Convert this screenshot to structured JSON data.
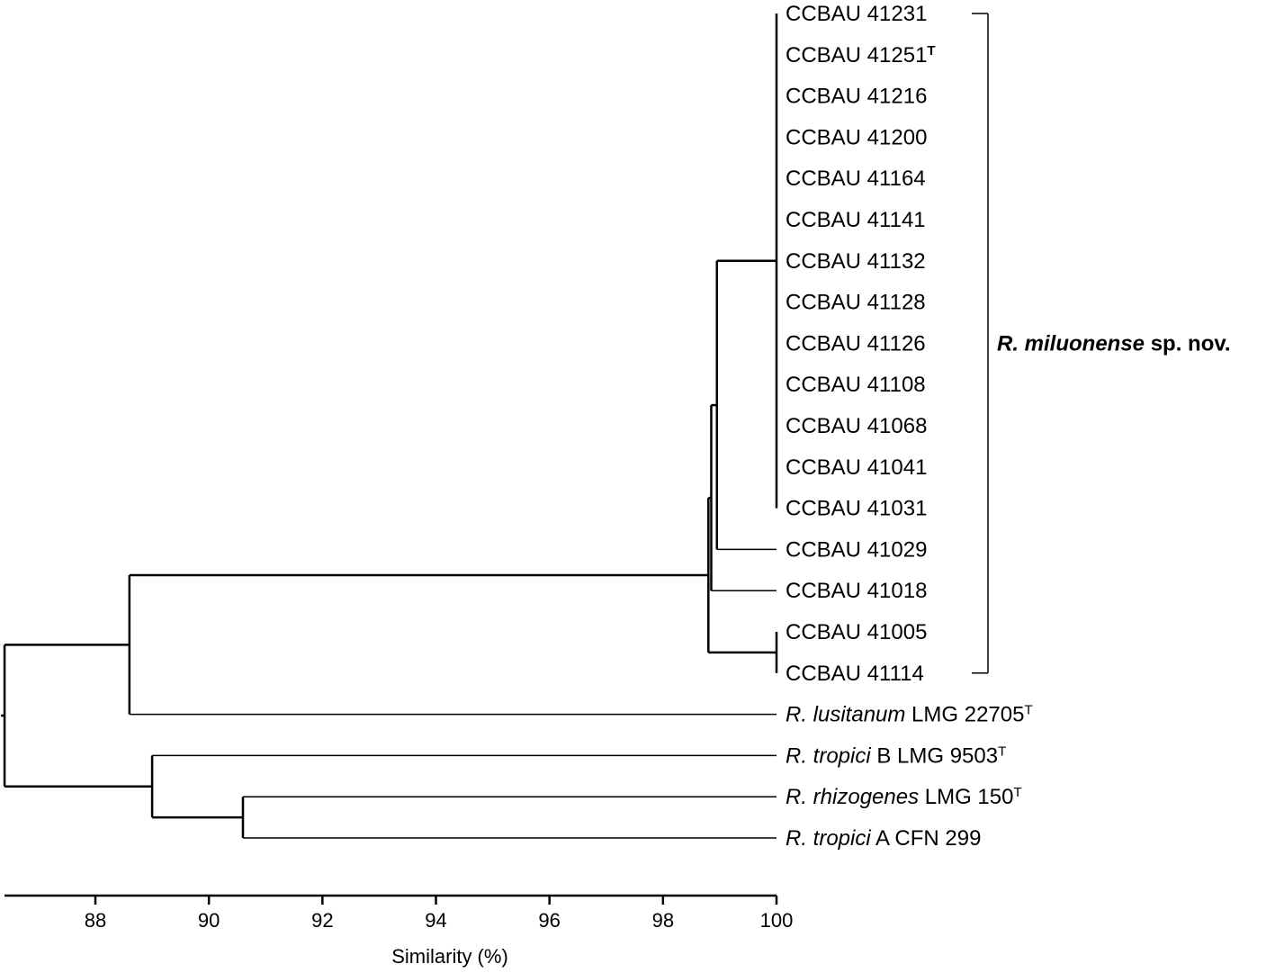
{
  "chart_data": {
    "type": "dendrogram",
    "xlabel": "Similarity (%)",
    "xlim": [
      86.4,
      100
    ],
    "xticks": [
      88,
      90,
      92,
      94,
      96,
      98,
      100
    ],
    "colors": {
      "line": "#000000",
      "text": "#000000",
      "background": "#ffffff"
    },
    "leaves": [
      {
        "id": "L1",
        "parts": [
          {
            "t": "CCBAU 41231"
          }
        ]
      },
      {
        "id": "L2",
        "parts": [
          {
            "t": "CCBAU 41251"
          },
          {
            "t": "T",
            "sup": true,
            "bold": true
          }
        ]
      },
      {
        "id": "L3",
        "parts": [
          {
            "t": "CCBAU 41216"
          }
        ]
      },
      {
        "id": "L4",
        "parts": [
          {
            "t": "CCBAU 41200"
          }
        ]
      },
      {
        "id": "L5",
        "parts": [
          {
            "t": "CCBAU 41164"
          }
        ]
      },
      {
        "id": "L6",
        "parts": [
          {
            "t": "CCBAU 41141"
          }
        ]
      },
      {
        "id": "L7",
        "parts": [
          {
            "t": "CCBAU 41132"
          }
        ]
      },
      {
        "id": "L8",
        "parts": [
          {
            "t": "CCBAU 41128"
          }
        ]
      },
      {
        "id": "L9",
        "parts": [
          {
            "t": "CCBAU 41126"
          }
        ]
      },
      {
        "id": "L10",
        "parts": [
          {
            "t": "CCBAU 41108"
          }
        ]
      },
      {
        "id": "L11",
        "parts": [
          {
            "t": "CCBAU 41068"
          }
        ]
      },
      {
        "id": "L12",
        "parts": [
          {
            "t": "CCBAU 41041"
          }
        ]
      },
      {
        "id": "L13",
        "parts": [
          {
            "t": "CCBAU 41031"
          }
        ]
      },
      {
        "id": "L14",
        "parts": [
          {
            "t": "CCBAU 41029"
          }
        ]
      },
      {
        "id": "L15",
        "parts": [
          {
            "t": "CCBAU 41018"
          }
        ]
      },
      {
        "id": "L16",
        "parts": [
          {
            "t": "CCBAU 41005"
          }
        ]
      },
      {
        "id": "L17",
        "parts": [
          {
            "t": "CCBAU 41114"
          }
        ]
      },
      {
        "id": "L18",
        "parts": [
          {
            "t": "R. lusitanum",
            "italic": true
          },
          {
            "t": " LMG 22705"
          },
          {
            "t": "T",
            "sup": true
          }
        ]
      },
      {
        "id": "L19",
        "parts": [
          {
            "t": "R. tropici",
            "italic": true
          },
          {
            "t": " B LMG 9503"
          },
          {
            "t": "T",
            "sup": true
          }
        ]
      },
      {
        "id": "L20",
        "parts": [
          {
            "t": "R. rhizogenes",
            "italic": true
          },
          {
            "t": " LMG 150"
          },
          {
            "t": "T",
            "sup": true
          }
        ]
      },
      {
        "id": "L21",
        "parts": [
          {
            "t": "R. tropici",
            "italic": true
          },
          {
            "t": " A CFN 299"
          }
        ]
      }
    ],
    "tree": {
      "sim": 86.4,
      "children": [
        {
          "sim": 88.6,
          "children": [
            {
              "sim": 98.8,
              "children": [
                {
                  "sim": 98.85,
                  "children": [
                    {
                      "sim": 98.95,
                      "children": [
                        {
                          "sim": 100,
                          "leaves": [
                            "L1",
                            "L2",
                            "L3",
                            "L4",
                            "L5",
                            "L6",
                            "L7",
                            "L8",
                            "L9",
                            "L10",
                            "L11",
                            "L12",
                            "L13"
                          ]
                        },
                        {
                          "leaf": "L14"
                        }
                      ]
                    },
                    {
                      "leaf": "L15"
                    }
                  ]
                },
                {
                  "sim": 100,
                  "leaves": [
                    "L16",
                    "L17"
                  ]
                }
              ]
            },
            {
              "leaf": "L18"
            }
          ]
        },
        {
          "sim": 89.0,
          "children": [
            {
              "leaf": "L19"
            },
            {
              "sim": 90.6,
              "children": [
                {
                  "leaf": "L20"
                },
                {
                  "leaf": "L21"
                }
              ]
            }
          ]
        }
      ]
    },
    "group": {
      "from": "L1",
      "to": "L17",
      "label_parts": [
        {
          "t": "R. miluonense",
          "italic": true
        },
        {
          "t": " sp. nov."
        }
      ]
    }
  }
}
